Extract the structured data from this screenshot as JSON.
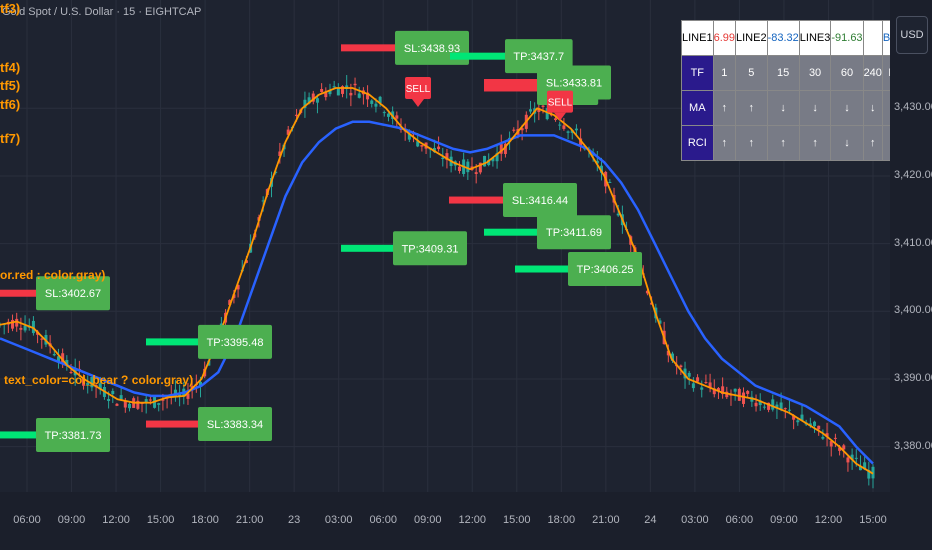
{
  "chart_title": "Gold Spot / U.S. Dollar · 15 · EIGHTCAP",
  "currency_button": "USD",
  "side_labels": [
    "tf3)",
    "tf4)",
    "tf5)",
    "tf6)",
    "tf7)"
  ],
  "code_snippets": [
    "or.red : color.gray)",
    "text_color=col_bear ? color.gray)"
  ],
  "table": {
    "header": [
      {
        "text": "LINE1",
        "color": "#000000"
      },
      {
        "text": "6.99",
        "color": "#e53935"
      },
      {
        "text": "LINE2",
        "color": "#000000"
      },
      {
        "text": "-83.32",
        "color": "#1565c0"
      },
      {
        "text": "LINE3",
        "color": "#000000"
      },
      {
        "text": "-91.63",
        "color": "#2e7d32"
      },
      {
        "text": "",
        "color": "#000000"
      },
      {
        "text": "Buy",
        "color": "#1565c0"
      }
    ],
    "tf_label": "TF",
    "tfs": [
      "1",
      "5",
      "15",
      "30",
      "60",
      "240",
      "D"
    ],
    "ma_label": "MA",
    "ma": [
      "↑",
      "↑",
      "↓",
      "↓",
      "↓",
      "↓",
      "↑"
    ],
    "rci_label": "RCI",
    "rci": [
      "↑",
      "↑",
      "↑",
      "↑",
      "↓",
      "↑",
      "↑"
    ]
  },
  "colors": {
    "background": "#1e2330",
    "candle_up": "#26a69a",
    "candle_down": "#ef5350",
    "fast_ma": "#ff9800",
    "slow_ma": "#2962ff",
    "tp_line": "#00e676",
    "sl_line": "#f23645",
    "label_green": "#4caf50",
    "label_red": "#f23645",
    "table_header_cell": "#2a1a8c"
  },
  "chart_data": {
    "type": "line",
    "title": "Gold Spot / U.S. Dollar · 15 · EIGHTCAP",
    "x_ticks": [
      "06:00",
      "09:00",
      "12:00",
      "15:00",
      "18:00",
      "21:00",
      "23",
      "03:00",
      "06:00",
      "09:00",
      "12:00",
      "15:00",
      "18:00",
      "21:00",
      "24",
      "03:00",
      "06:00",
      "09:00",
      "12:00",
      "15:00"
    ],
    "y_ticks": [
      3380,
      3390,
      3400,
      3410,
      3420,
      3430
    ],
    "ylim": [
      3373.3,
      3446.0
    ],
    "currency": "USD",
    "series": [
      {
        "name": "fast_ma",
        "values": [
          3398,
          3398.5,
          3397.5,
          3395,
          3392,
          3390,
          3388.5,
          3387,
          3386.5,
          3386.5,
          3387.3,
          3387.5,
          3390,
          3396,
          3403,
          3410,
          3418,
          3425,
          3430,
          3432,
          3433,
          3433,
          3432,
          3430,
          3427,
          3425,
          3423.5,
          3422,
          3421,
          3422,
          3424,
          3427,
          3430,
          3429,
          3427,
          3424,
          3420,
          3414,
          3408,
          3400,
          3393,
          3390,
          3389,
          3388,
          3387.5,
          3387,
          3386,
          3385,
          3383.5,
          3382,
          3380,
          3377.5,
          3376
        ]
      },
      {
        "name": "slow_ma",
        "values": [
          3396,
          3395,
          3394,
          3393,
          3392,
          3391,
          3390,
          3389,
          3388,
          3387.5,
          3387.5,
          3388,
          3389,
          3391,
          3396,
          3403,
          3410,
          3417,
          3422,
          3425,
          3427,
          3428,
          3428,
          3427.5,
          3427,
          3426,
          3425,
          3424,
          3423.5,
          3424,
          3425,
          3426,
          3426,
          3426,
          3425,
          3424,
          3422,
          3419,
          3415,
          3410,
          3405,
          3400,
          3396,
          3393,
          3391,
          3389,
          3388,
          3387,
          3386,
          3384.5,
          3383,
          3380,
          3377.5
        ]
      }
    ],
    "levels": [
      {
        "kind": "TP",
        "label": "TP:3381.73",
        "value": 3381.73
      },
      {
        "kind": "SL",
        "label": "SL:3402.67",
        "value": 3402.67
      },
      {
        "kind": "TP",
        "label": "TP:3395.48",
        "value": 3395.48
      },
      {
        "kind": "SL",
        "label": "SL:3383.34",
        "value": 3383.34
      },
      {
        "kind": "TP",
        "label": "TP:3409.31",
        "value": 3409.31
      },
      {
        "kind": "SL",
        "label": "SL:3438.93",
        "value": 3438.93
      },
      {
        "kind": "TP",
        "label": "TP:3437.7",
        "value": 3437.7
      },
      {
        "kind": "SL",
        "label": "SL:3433.",
        "value": 3433.0
      },
      {
        "kind": "SL",
        "label": "SL:3433.81",
        "value": 3433.81
      },
      {
        "kind": "SL",
        "label": "SL:3416.44",
        "value": 3416.44
      },
      {
        "kind": "TP",
        "label": "TP:3411.69",
        "value": 3411.69
      },
      {
        "kind": "TP",
        "label": "TP:3406.25",
        "value": 3406.25
      }
    ],
    "signals": [
      {
        "label": "SELL",
        "value": 3429
      },
      {
        "label": "SELL",
        "value": 3427
      }
    ]
  }
}
